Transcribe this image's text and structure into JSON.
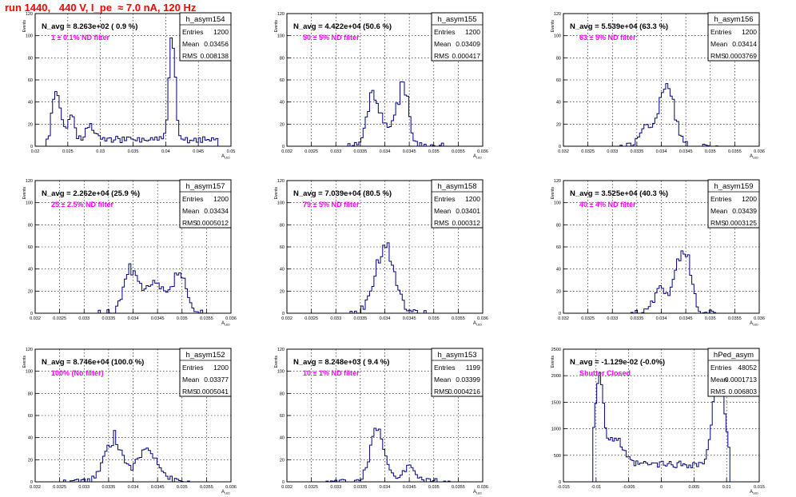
{
  "page": {
    "run_title": "run 1440,   440 V, I_pe  ≈ 7.0 nA, 120 Hz"
  },
  "colors": {
    "histogram": "#000080",
    "annotation": "#ff00ff",
    "title": "#ff0000",
    "grid": "#000000"
  },
  "chart_data": [
    {
      "type": "bar",
      "name": "h_asym154",
      "title": "h_asym154",
      "header": "N_avg = 8.263e+02 ( 0.9 %)",
      "note": "1 ± 0.1% ND filter",
      "stats": [
        [
          "Entries",
          "1200"
        ],
        [
          "Mean",
          "0.03456"
        ],
        [
          "RMS",
          "0.008138"
        ]
      ],
      "xlabel": "A_LED",
      "ylabel": "Events",
      "xlim": [
        0.02,
        0.05
      ],
      "ylim": [
        0,
        120
      ],
      "xticks": [
        0.02,
        0.025,
        0.03,
        0.035,
        0.04,
        0.045,
        0.05
      ],
      "xticklabels": [
        "0.02",
        "0.025",
        "0.03",
        "0.035",
        "0.04",
        "0.045",
        "0.05"
      ],
      "yticks": [
        0,
        20,
        40,
        60,
        80,
        100,
        120
      ],
      "grid": true,
      "peaks": [
        [
          0.0235,
          32,
          0.0008
        ],
        [
          0.0255,
          28,
          0.0007
        ],
        [
          0.0228,
          20,
          0.0005
        ],
        [
          0.0285,
          12,
          0.001
        ],
        [
          0.0408,
          62,
          0.0006
        ],
        [
          0.0413,
          38,
          0.0005
        ]
      ],
      "base": 6,
      "range": [
        0.0218,
        0.048
      ],
      "seed": 154
    },
    {
      "type": "bar",
      "name": "h_asym155",
      "title": "h_asym155",
      "header": "N_avg = 4.422e+04 (50.6 %)",
      "note": "50 ± 5% ND filter",
      "stats": [
        [
          "Entries",
          "1200"
        ],
        [
          "Mean",
          "0.03409"
        ],
        [
          "RMS",
          "0.000417"
        ]
      ],
      "xlabel": "A_LED",
      "ylabel": "Events",
      "xlim": [
        0.032,
        0.036
      ],
      "ylim": [
        0,
        120
      ],
      "xticks": [
        0.032,
        0.0325,
        0.033,
        0.0335,
        0.034,
        0.0345,
        0.035,
        0.0355,
        0.036
      ],
      "xticklabels": [
        "0.032",
        "0.0325",
        "0.033",
        "0.0335",
        "0.034",
        "0.0345",
        "0.035",
        "0.0355",
        "0.036"
      ],
      "yticks": [
        0,
        20,
        40,
        60,
        80,
        100,
        120
      ],
      "grid": true,
      "peaks": [
        [
          0.03375,
          42,
          0.00015
        ],
        [
          0.03438,
          48,
          0.00013
        ],
        [
          0.0341,
          20,
          0.0004
        ]
      ],
      "base": 0,
      "range": [
        0.0332,
        0.0352
      ],
      "seed": 155
    },
    {
      "type": "bar",
      "name": "h_asym156",
      "title": "h_asym156",
      "header": "N_avg = 5.539e+04 (63.3 %)",
      "note": "63 ± 5% ND filter",
      "stats": [
        [
          "Entries",
          "1200"
        ],
        [
          "Mean",
          "0.03414"
        ],
        [
          "RMS",
          "0.0003769"
        ]
      ],
      "xlabel": "A_LED",
      "ylabel": "Events",
      "xlim": [
        0.032,
        0.036
      ],
      "ylim": [
        0,
        120
      ],
      "xticks": [
        0.032,
        0.0325,
        0.033,
        0.0335,
        0.034,
        0.0345,
        0.035,
        0.0355,
        0.036
      ],
      "xticklabels": [
        "0.032",
        "0.0325",
        "0.033",
        "0.0335",
        "0.034",
        "0.0345",
        "0.035",
        "0.0355",
        "0.036"
      ],
      "yticks": [
        0,
        20,
        40,
        60,
        80,
        100,
        120
      ],
      "grid": true,
      "peaks": [
        [
          0.0341,
          60,
          0.00022
        ],
        [
          0.03365,
          18,
          0.00015
        ]
      ],
      "base": 0,
      "range": [
        0.0331,
        0.0352
      ],
      "seed": 156
    },
    {
      "type": "bar",
      "name": "h_asym157",
      "title": "h_asym157",
      "header": "N_avg = 2.262e+04 (25.9 %)",
      "note": "25 ± 2.5% ND filter",
      "stats": [
        [
          "Entries",
          "1200"
        ],
        [
          "Mean",
          "0.03434"
        ],
        [
          "RMS",
          "0.0005012"
        ]
      ],
      "xlabel": "A_LED",
      "ylabel": "Events",
      "xlim": [
        0.032,
        0.036
      ],
      "ylim": [
        0,
        120
      ],
      "xticks": [
        0.032,
        0.0325,
        0.033,
        0.0335,
        0.034,
        0.0345,
        0.035,
        0.0355,
        0.036
      ],
      "xticklabels": [
        "0.032",
        "0.0325",
        "0.033",
        "0.0335",
        "0.034",
        "0.0345",
        "0.035",
        "0.0355",
        "0.036"
      ],
      "yticks": [
        0,
        20,
        40,
        60,
        80,
        100,
        120
      ],
      "grid": true,
      "peaks": [
        [
          0.03395,
          38,
          0.0002
        ],
        [
          0.03495,
          36,
          0.00018
        ],
        [
          0.03445,
          26,
          0.0003
        ]
      ],
      "base": 0,
      "range": [
        0.0333,
        0.0354
      ],
      "seed": 157
    },
    {
      "type": "bar",
      "name": "h_asym158",
      "title": "h_asym158",
      "header": "N_avg = 7.039e+04 (80.5 %)",
      "note": "79 ± 5% ND filter",
      "stats": [
        [
          "Entries",
          "1200"
        ],
        [
          "Mean",
          "0.03401"
        ],
        [
          "RMS",
          "0.000312"
        ]
      ],
      "xlabel": "A_LED",
      "ylabel": "Events",
      "xlim": [
        0.032,
        0.036
      ],
      "ylim": [
        0,
        120
      ],
      "xticks": [
        0.032,
        0.0325,
        0.033,
        0.0335,
        0.034,
        0.0345,
        0.035,
        0.0355,
        0.036
      ],
      "xticklabels": [
        "0.032",
        "0.0325",
        "0.033",
        "0.0335",
        "0.034",
        "0.0345",
        "0.035",
        "0.0355",
        "0.036"
      ],
      "yticks": [
        0,
        20,
        40,
        60,
        80,
        100,
        120
      ],
      "grid": true,
      "peaks": [
        [
          0.034,
          60,
          0.00028
        ]
      ],
      "base": 0,
      "range": [
        0.0333,
        0.0349
      ],
      "seed": 158
    },
    {
      "type": "bar",
      "name": "h_asym159",
      "title": "h_asym159",
      "header": "N_avg = 3.525e+04 (40.3 %)",
      "note": "40 ± 4% ND filter",
      "stats": [
        [
          "Entries",
          "1200"
        ],
        [
          "Mean",
          "0.03439"
        ],
        [
          "RMS",
          "0.0003125"
        ]
      ],
      "xlabel": "A_LED",
      "ylabel": "Events",
      "xlim": [
        0.032,
        0.036
      ],
      "ylim": [
        0,
        120
      ],
      "xticks": [
        0.032,
        0.0325,
        0.033,
        0.0335,
        0.034,
        0.0345,
        0.035,
        0.0355,
        0.036
      ],
      "xticklabels": [
        "0.032",
        "0.0325",
        "0.033",
        "0.0335",
        "0.034",
        "0.0345",
        "0.035",
        "0.0355",
        "0.036"
      ],
      "yticks": [
        0,
        20,
        40,
        60,
        80,
        100,
        120
      ],
      "grid": true,
      "peaks": [
        [
          0.03445,
          62,
          0.0002
        ],
        [
          0.034,
          22,
          0.0002
        ]
      ],
      "base": 0,
      "range": [
        0.0334,
        0.0352
      ],
      "seed": 159
    },
    {
      "type": "bar",
      "name": "h_asym152",
      "title": "h_asym152",
      "header": "N_avg = 8.746e+04 (100.0 %)",
      "note": "100% (No filter)",
      "stats": [
        [
          "Entries",
          "1200"
        ],
        [
          "Mean",
          "0.03377"
        ],
        [
          "RMS",
          "0.0005041"
        ]
      ],
      "xlabel": "A_LED",
      "ylabel": "Events",
      "xlim": [
        0.032,
        0.036
      ],
      "ylim": [
        0,
        120
      ],
      "xticks": [
        0.032,
        0.0325,
        0.033,
        0.0335,
        0.034,
        0.0345,
        0.035,
        0.0355,
        0.036
      ],
      "xticklabels": [
        "0.032",
        "0.0325",
        "0.033",
        "0.0335",
        "0.034",
        "0.0345",
        "0.035",
        "0.0355",
        "0.036"
      ],
      "yticks": [
        0,
        20,
        40,
        60,
        80,
        100,
        120
      ],
      "grid": true,
      "peaks": [
        [
          0.0336,
          40,
          0.00025
        ],
        [
          0.0343,
          30,
          0.0003
        ]
      ],
      "base": 0,
      "range": [
        0.0326,
        0.0352
      ],
      "seed": 152
    },
    {
      "type": "bar",
      "name": "h_asym153",
      "title": "h_asym153",
      "header": "N_avg = 8.248e+03 ( 9.4 %)",
      "note": "10 ± 1% ND filter",
      "stats": [
        [
          "Entries",
          "1199"
        ],
        [
          "Mean",
          "0.03399"
        ],
        [
          "RMS",
          "0.0004216"
        ]
      ],
      "xlabel": "A_LED",
      "ylabel": "Events",
      "xlim": [
        0.032,
        0.036
      ],
      "ylim": [
        0,
        120
      ],
      "xticks": [
        0.032,
        0.0325,
        0.033,
        0.0335,
        0.034,
        0.0345,
        0.035,
        0.0355,
        0.036
      ],
      "xticklabels": [
        "0.032",
        "0.0325",
        "0.033",
        "0.0335",
        "0.034",
        "0.0345",
        "0.035",
        "0.0355",
        "0.036"
      ],
      "yticks": [
        0,
        20,
        40,
        60,
        80,
        100,
        120
      ],
      "grid": true,
      "peaks": [
        [
          0.03385,
          50,
          0.0002
        ],
        [
          0.0345,
          14,
          0.0002
        ]
      ],
      "base": 0,
      "range": [
        0.0328,
        0.0354
      ],
      "seed": 153
    },
    {
      "type": "bar",
      "name": "hPed_asym",
      "title": "hPed_asym",
      "header": "N_avg = -1.129e-02 (-0.0%)",
      "note": "Shutter Closed",
      "stats": [
        [
          "Entries",
          "48052"
        ],
        [
          "Mean",
          "0.0001713"
        ],
        [
          "RMS",
          "0.006803"
        ]
      ],
      "xlabel": "A_LED",
      "ylabel": "Events",
      "xlim": [
        -0.015,
        0.015
      ],
      "ylim": [
        0,
        2500
      ],
      "xticks": [
        -0.015,
        -0.01,
        -0.005,
        0,
        0.005,
        0.01,
        0.015
      ],
      "xticklabels": [
        "-0.015",
        "-0.01",
        "-0.005",
        "0",
        "0.005",
        "0.01",
        "0.015"
      ],
      "yticks": [
        0,
        500,
        1000,
        1500,
        2000,
        2500
      ],
      "grid": true,
      "ped": true,
      "seed": 99
    }
  ]
}
